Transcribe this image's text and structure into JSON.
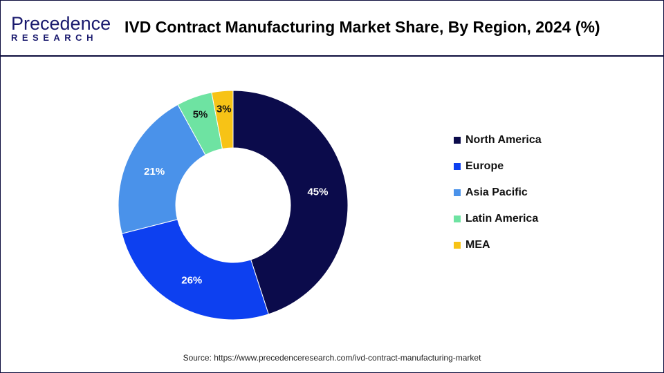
{
  "header": {
    "logo_top": "Precedence",
    "logo_bottom": "RESEARCH",
    "title": "IVD Contract Manufacturing Market Share, By Region, 2024 (%)"
  },
  "chart_data": {
    "type": "pie",
    "donut": true,
    "title": "IVD Contract Manufacturing Market Share, By Region, 2024 (%)",
    "categories": [
      "North America",
      "Europe",
      "Asia Pacific",
      "Latin America",
      "MEA"
    ],
    "values": [
      45,
      26,
      21,
      5,
      3
    ],
    "labels": [
      "45%",
      "26%",
      "21%",
      "5%",
      "3%"
    ],
    "colors": [
      "#0b0b4b",
      "#0d40f0",
      "#4a92ea",
      "#6ee3a2",
      "#f7c316"
    ],
    "start": "top",
    "direction": "clockwise",
    "legend_position": "right"
  },
  "legend": {
    "items": [
      "North America",
      "Europe",
      "Asia Pacific",
      "Latin America",
      "MEA"
    ]
  },
  "footer": {
    "source": "Source: https://www.precedenceresearch.com/ivd-contract-manufacturing-market"
  }
}
